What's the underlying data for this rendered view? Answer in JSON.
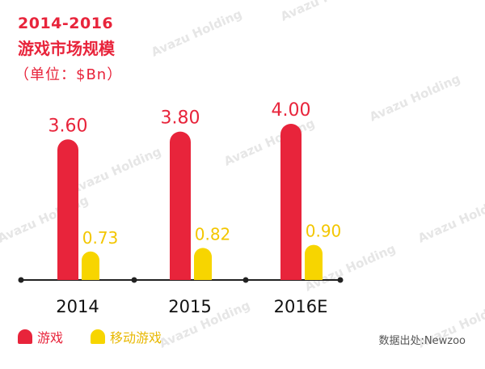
{
  "title_year": "2014-2016",
  "title_main": "游戏市场规模",
  "title_unit": "（单位：$Bn）",
  "source": "数据出处:Newzoo",
  "watermark": "Avazu Holding",
  "colors": {
    "primary": "#e8243b",
    "secondary": "#f7d500",
    "axis": "#222222"
  },
  "chart_data": {
    "type": "bar",
    "categories": [
      "2014",
      "2015",
      "2016E"
    ],
    "series": [
      {
        "name": "游戏",
        "values": [
          3.6,
          3.8,
          4.0
        ],
        "labels": [
          "3.60",
          "3.80",
          "4.00"
        ]
      },
      {
        "name": "移动游戏",
        "values": [
          0.73,
          0.82,
          0.9
        ],
        "labels": [
          "0.73",
          "0.82",
          "0.90"
        ]
      }
    ],
    "ylim": [
      0,
      4.6
    ]
  }
}
